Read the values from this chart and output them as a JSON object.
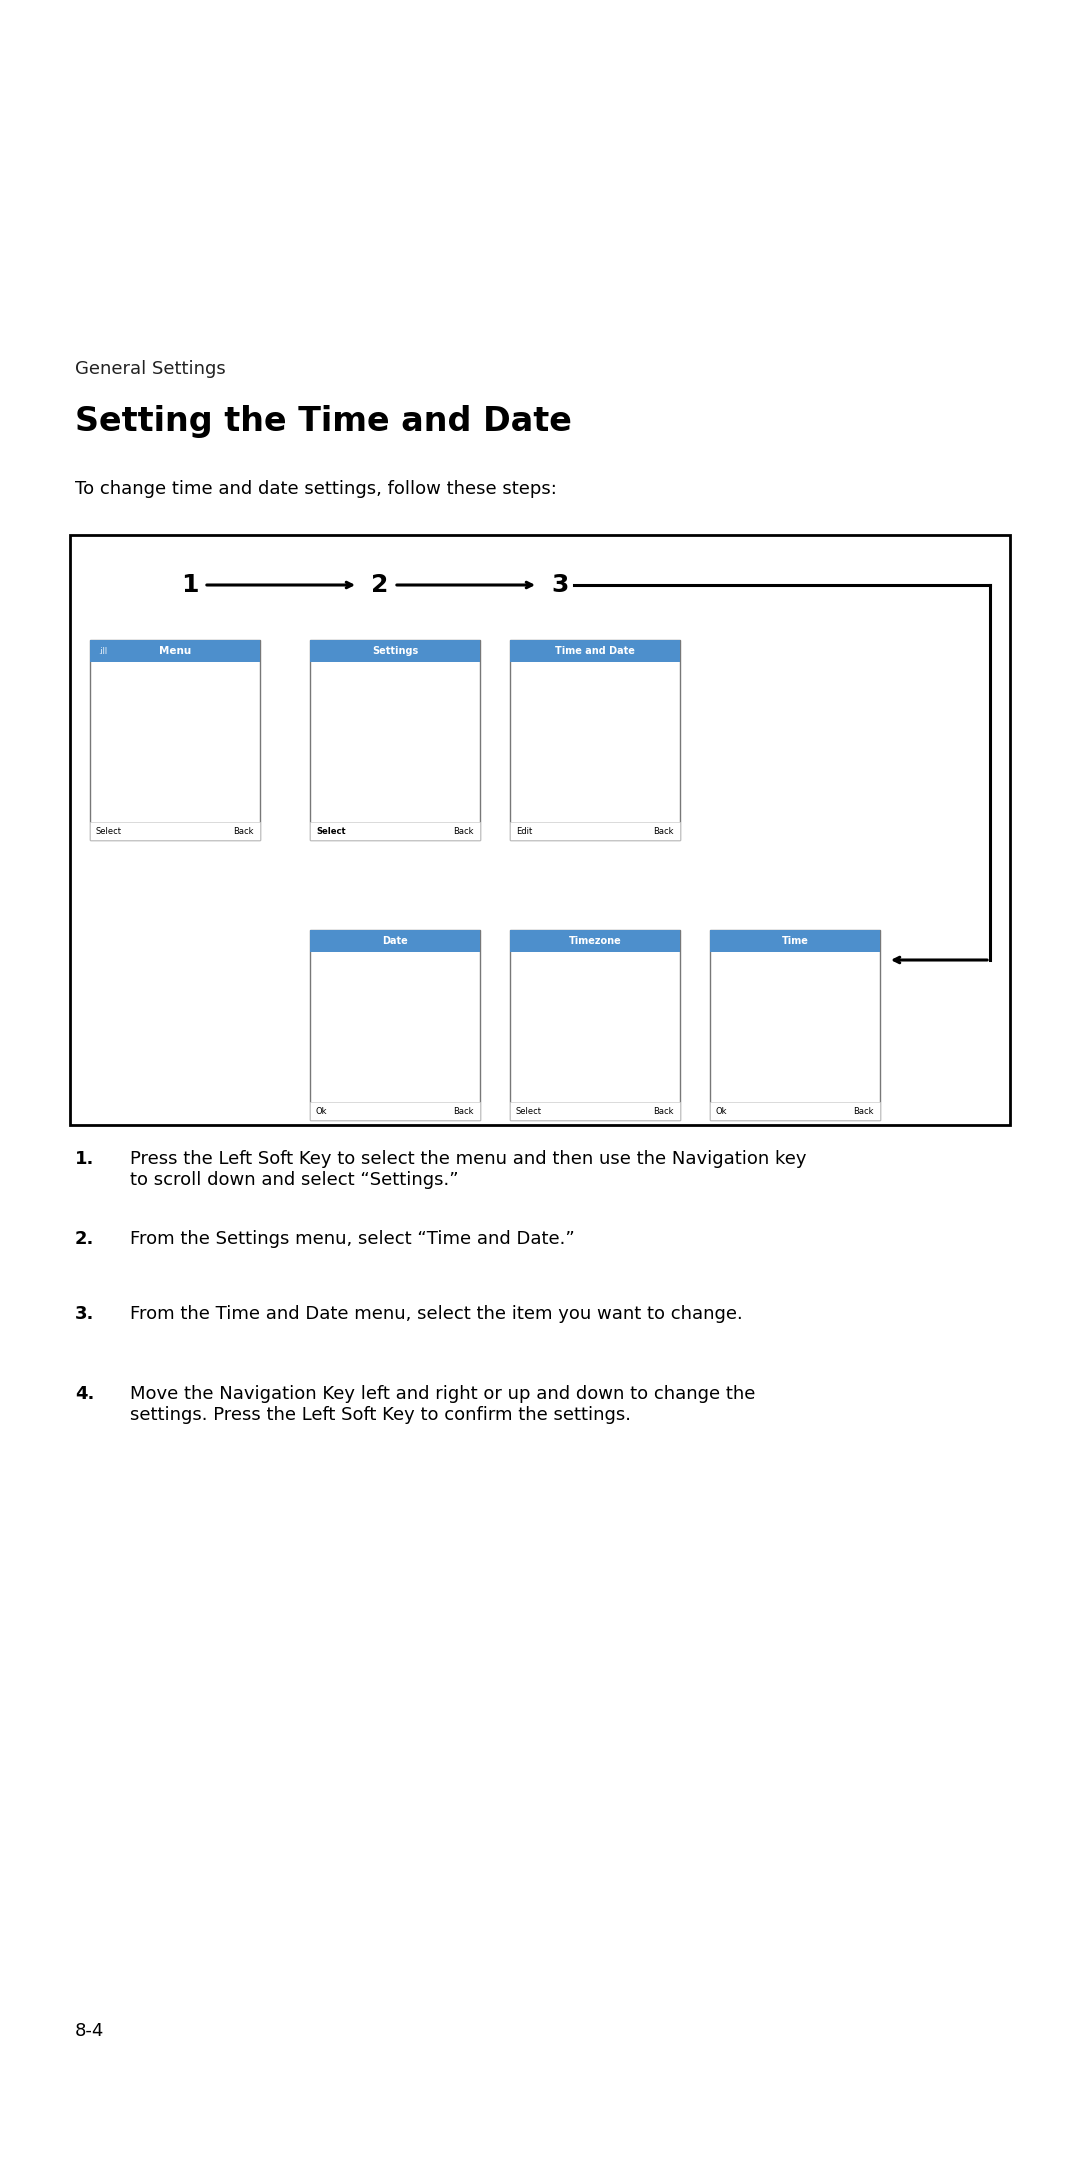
{
  "bg_color": "#ffffff",
  "header_text": "General Settings",
  "title": "Setting the Time and Date",
  "subtitle": "To change time and date settings, follow these steps:",
  "blue_header": "#4d8fcc",
  "light_blue_bg": "#ddeeff",
  "selected_blue": "#22aaff",
  "highlight_blue": "#1188ee",
  "border_color": "#000000",
  "white": "#ffffff",
  "gray_bg": "#f0f4f8",
  "instructions": [
    "Press the Left Soft Key to select the menu and then use the Navigation key\nto scroll down and select “Settings.”",
    "From the Settings menu, select “Time and Date.”",
    "From the Time and Date menu, select the item you want to change.",
    "Move the Navigation Key left and right or up and down to change the\nsettings. Press the Left Soft Key to confirm the settings."
  ],
  "page_number": "8-4"
}
